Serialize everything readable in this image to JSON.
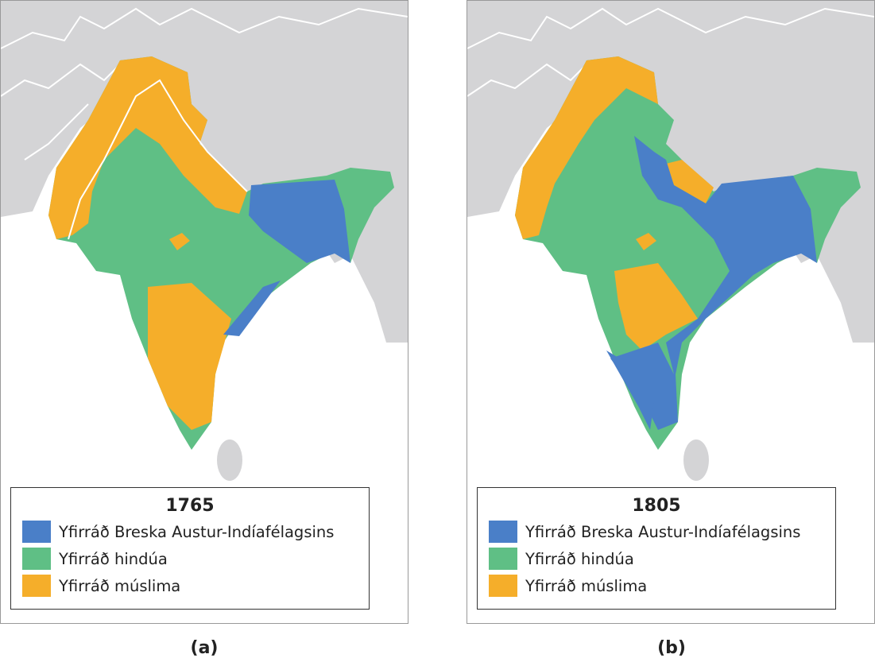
{
  "panels": [
    {
      "year": "1765",
      "legend": [
        "Yfirráð Breska Austur-Indíafélagsins",
        "Yfirráð hindúa",
        "Yfirráð múslima"
      ],
      "caption": "(a)"
    },
    {
      "year": "1805",
      "legend": [
        "Yfirráð Breska Austur-Indíafélagsins",
        "Yfirráð hindúa",
        "Yfirráð múslima"
      ],
      "caption": "(b)"
    }
  ]
}
